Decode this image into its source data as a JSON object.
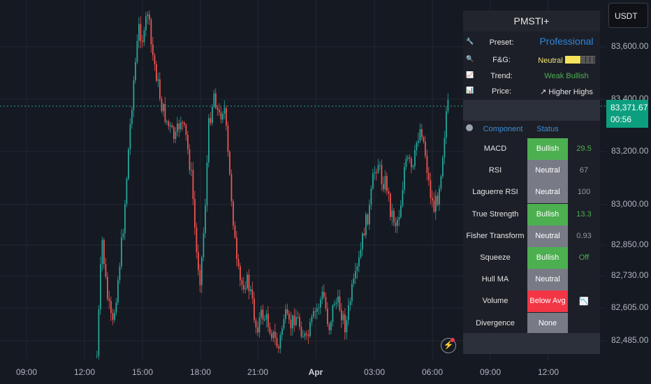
{
  "currency": "USDT",
  "last_price": {
    "value": "83,371.67",
    "countdown": "00:56"
  },
  "price_axis": [
    "83,600.00",
    "83,400.00",
    "83,200.00",
    "83,000.00",
    "82,850.00",
    "82,730.00",
    "82,605.00",
    "82,485.00"
  ],
  "time_axis": [
    {
      "label": "09:00",
      "bold": false
    },
    {
      "label": "12:00",
      "bold": false
    },
    {
      "label": "15:00",
      "bold": false
    },
    {
      "label": "18:00",
      "bold": false
    },
    {
      "label": "21:00",
      "bold": false
    },
    {
      "label": "Apr",
      "bold": true
    },
    {
      "label": "03:00",
      "bold": false
    },
    {
      "label": "06:00",
      "bold": false
    },
    {
      "label": "09:00",
      "bold": false
    },
    {
      "label": "12:00",
      "bold": false
    }
  ],
  "colors": {
    "up": "#26a69a",
    "down": "#ef5350",
    "bullish": "#4caf50",
    "neutral": "#787b86",
    "bearish": "#f23645",
    "accent": "#2e86de"
  },
  "panel": {
    "title": "PMSTI+",
    "info": [
      {
        "icon": "wrench-icon",
        "glyph": "🔧",
        "label": "Preset:",
        "value": "Professional",
        "value_color": "#2e86de"
      },
      {
        "icon": "magnifier-icon",
        "glyph": "🔍",
        "label": "F&G:",
        "value": "Neutral",
        "value_color": "#f1e47a"
      },
      {
        "icon": "chart-up-icon",
        "glyph": "📈",
        "label": "Trend:",
        "value": "Weak Bullish",
        "value_color": "#4caf50"
      },
      {
        "icon": "bar-chart-icon",
        "glyph": "📊",
        "label": "Price:",
        "value": "Higher Highs",
        "value_color": "#e5e5e5",
        "value_glyph": "↗"
      }
    ],
    "header": {
      "icon": "gear-icon",
      "component": "Component",
      "status": "Status"
    },
    "components": [
      {
        "name": "MACD",
        "status": "Bullish",
        "status_kind": "bullish",
        "value": "29.5",
        "value_color": "#4caf50"
      },
      {
        "name": "RSI",
        "status": "Neutral",
        "status_kind": "neutral",
        "value": "67",
        "value_color": "#9598a1"
      },
      {
        "name": "Laguerre RSI",
        "status": "Neutral",
        "status_kind": "neutral",
        "value": "100",
        "value_color": "#9598a1"
      },
      {
        "name": "True Strength",
        "status": "Bullish",
        "status_kind": "bullish",
        "value": "13.3",
        "value_color": "#4caf50"
      },
      {
        "name": "Fisher Transform",
        "status": "Neutral",
        "status_kind": "neutral",
        "value": "0.93",
        "value_color": "#9598a1"
      },
      {
        "name": "Squeeze",
        "status": "Bullish",
        "status_kind": "bullish",
        "value": "Off",
        "value_color": "#4caf50"
      },
      {
        "name": "Hull MA",
        "status": "Neutral",
        "status_kind": "neutral",
        "value": "",
        "value_color": "#9598a1"
      },
      {
        "name": "Volume",
        "status": "Below Avg",
        "status_kind": "bearish",
        "value": "📉",
        "value_color": "#e5e5e5"
      },
      {
        "name": "Divergence",
        "status": "None",
        "status_kind": "neutral",
        "value": "",
        "value_color": "#9598a1"
      }
    ]
  }
}
